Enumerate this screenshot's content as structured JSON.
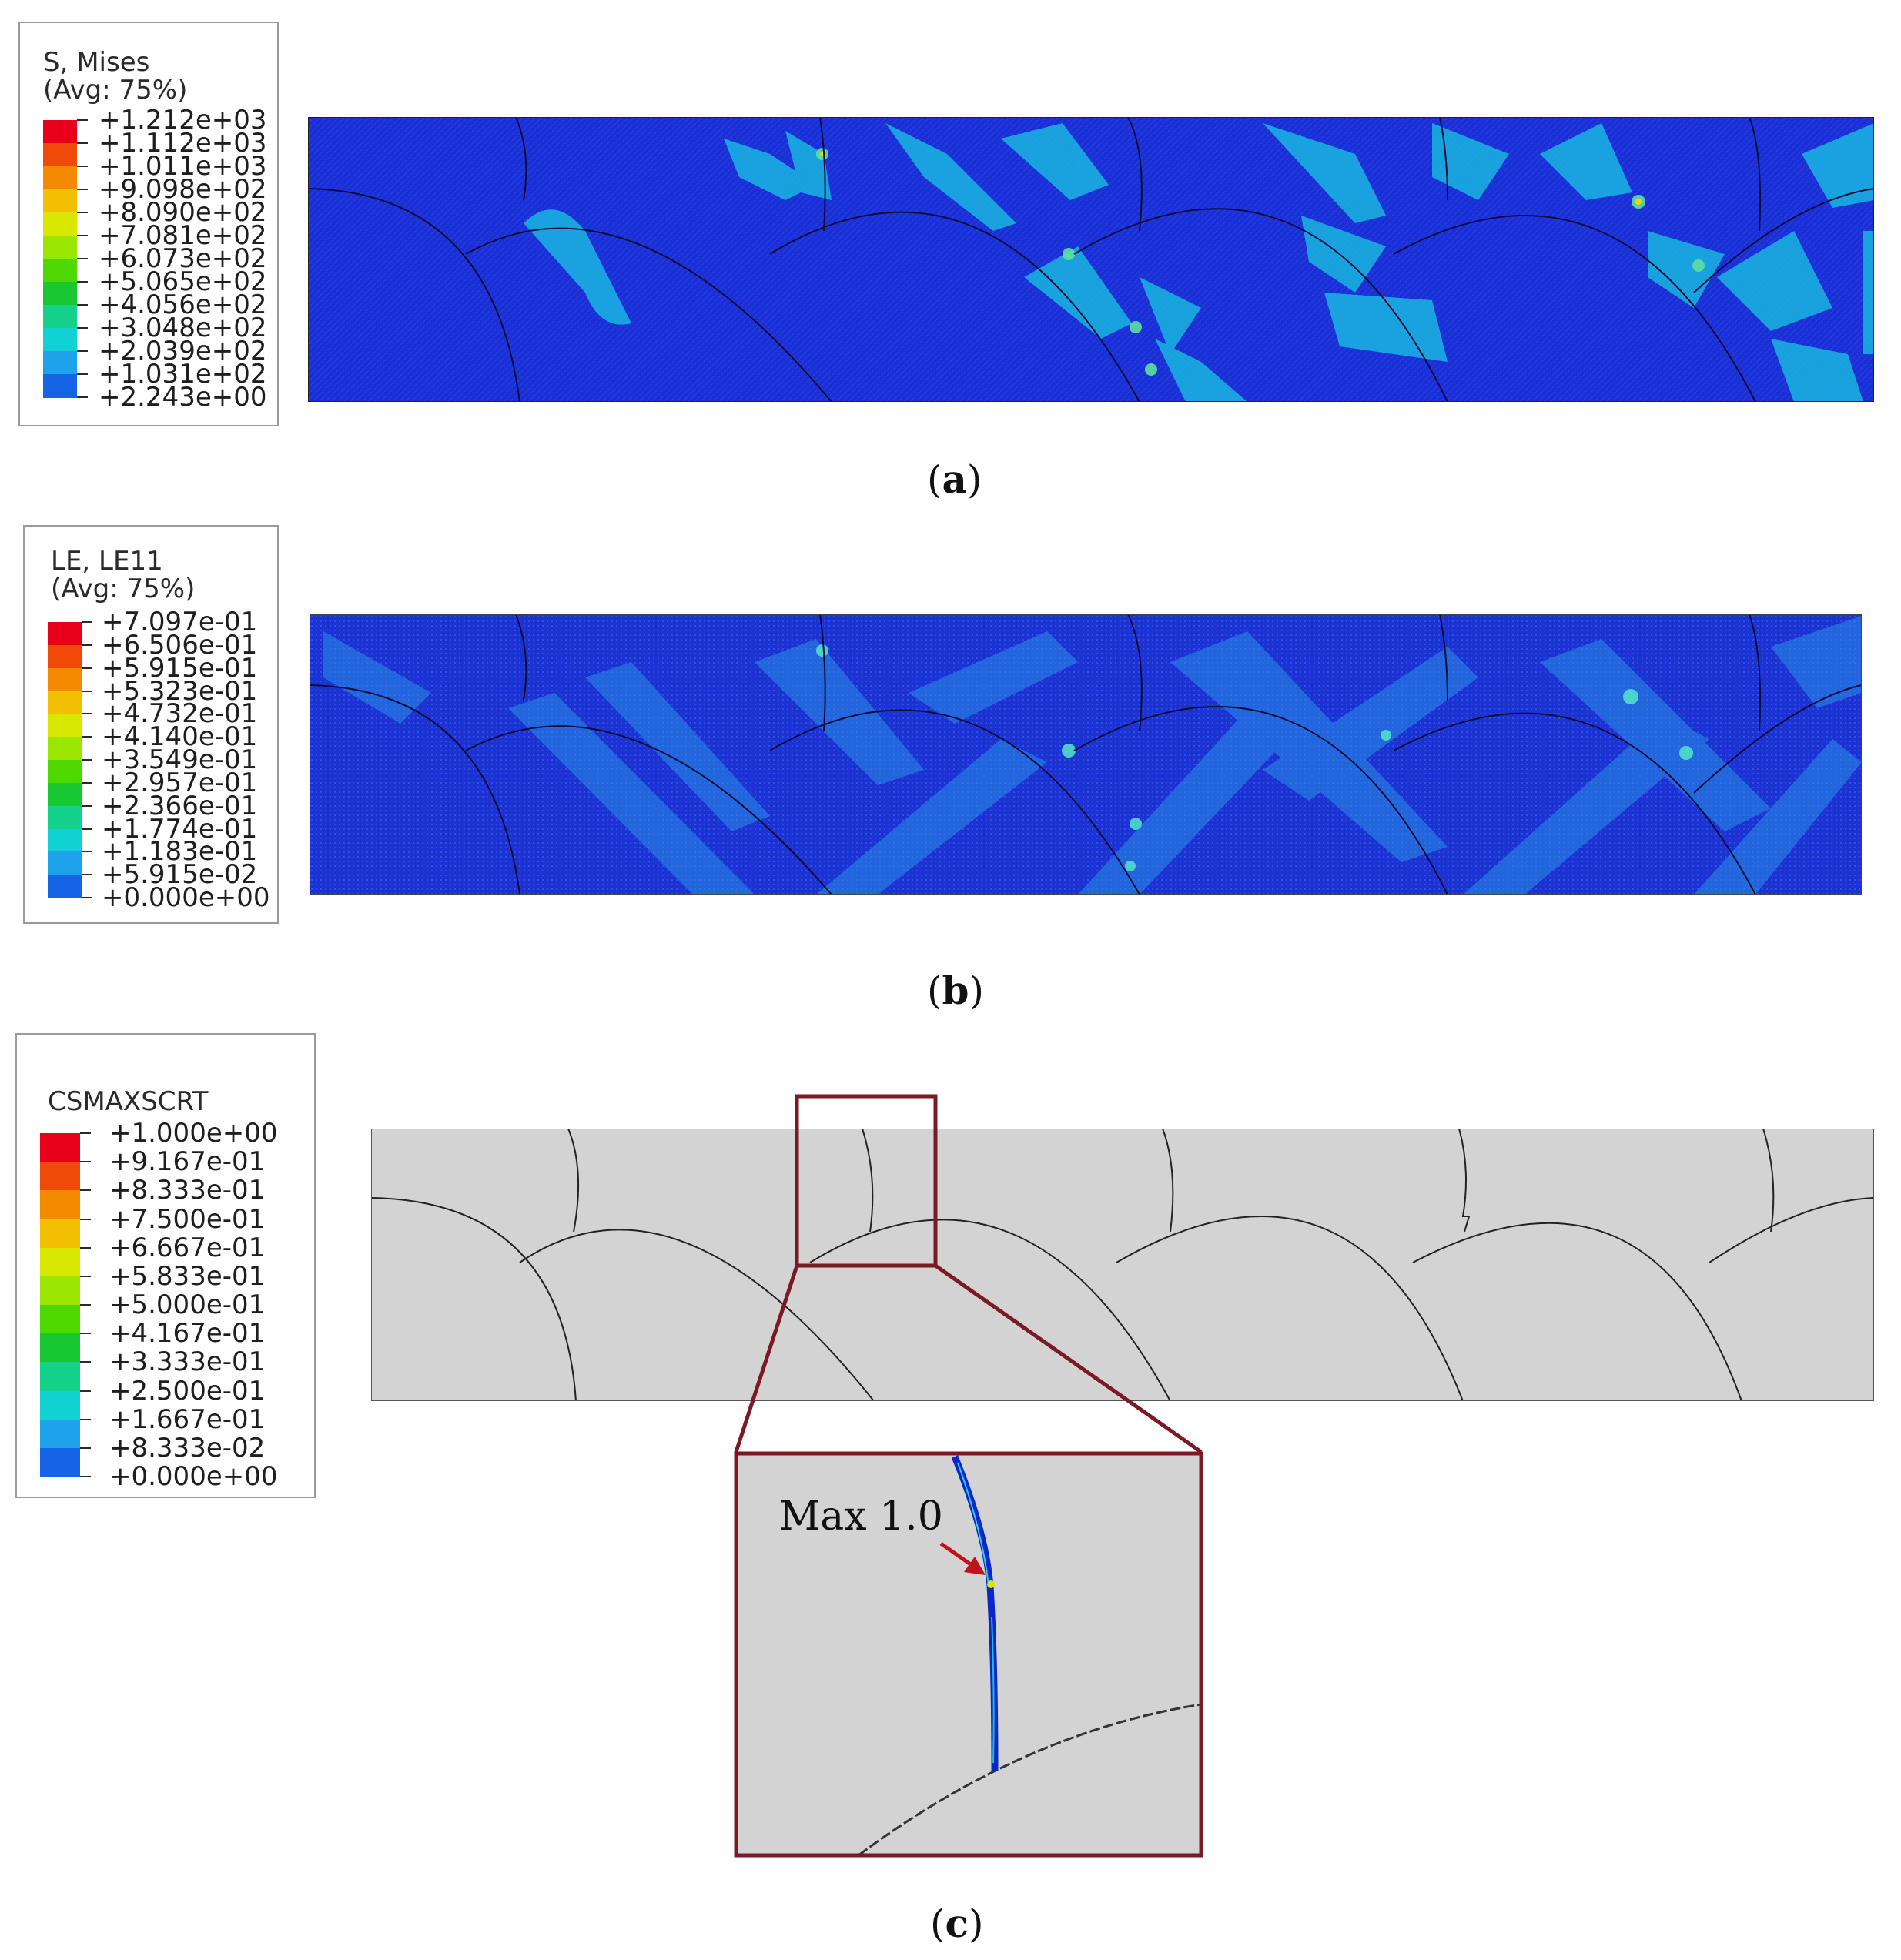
{
  "panels": [
    {
      "id": "a",
      "caption_letter": "a",
      "legend": {
        "title_line1": "S, Mises",
        "title_line2": "(Avg: 75%)",
        "labels": [
          "+1.212e+03",
          "+1.112e+03",
          "+1.011e+03",
          "+9.098e+02",
          "+8.090e+02",
          "+7.081e+02",
          "+6.073e+02",
          "+5.065e+02",
          "+4.056e+02",
          "+3.048e+02",
          "+2.039e+02",
          "+1.031e+02",
          "+2.243e+00"
        ]
      },
      "field": "stress"
    },
    {
      "id": "b",
      "caption_letter": "b",
      "legend": {
        "title_line1": "LE, LE11",
        "title_line2": "(Avg: 75%)",
        "labels": [
          "+7.097e-01",
          "+6.506e-01",
          "+5.915e-01",
          "+5.323e-01",
          "+4.732e-01",
          "+4.140e-01",
          "+3.549e-01",
          "+2.957e-01",
          "+2.366e-01",
          "+1.774e-01",
          "+1.183e-01",
          "+5.915e-02",
          "+0.000e+00"
        ]
      },
      "field": "strain"
    },
    {
      "id": "c",
      "caption_letter": "c",
      "legend": {
        "title_line1": "CSMAXSCRT",
        "title_line2": "",
        "labels": [
          "+1.000e+00",
          "+9.167e-01",
          "+8.333e-01",
          "+7.500e-01",
          "+6.667e-01",
          "+5.833e-01",
          "+5.000e-01",
          "+4.167e-01",
          "+3.333e-01",
          "+2.500e-01",
          "+1.667e-01",
          "+8.333e-02",
          "+0.000e+00"
        ]
      },
      "field": "damage",
      "annotation": "Max 1.0"
    }
  ],
  "colors": {
    "scale": [
      "#e8001a",
      "#f04a08",
      "#f58a00",
      "#f2c000",
      "#d8e800",
      "#9be600",
      "#4ed800",
      "#18c832",
      "#14d28c",
      "#10d2d2",
      "#1ea2ec",
      "#1664e6",
      "#0c18d8"
    ],
    "contour_bg": "#1b2fd6",
    "mesh_grey": "#d3d3d3",
    "zoom_box": "#7a1a24",
    "arrow": "#c0121c"
  }
}
